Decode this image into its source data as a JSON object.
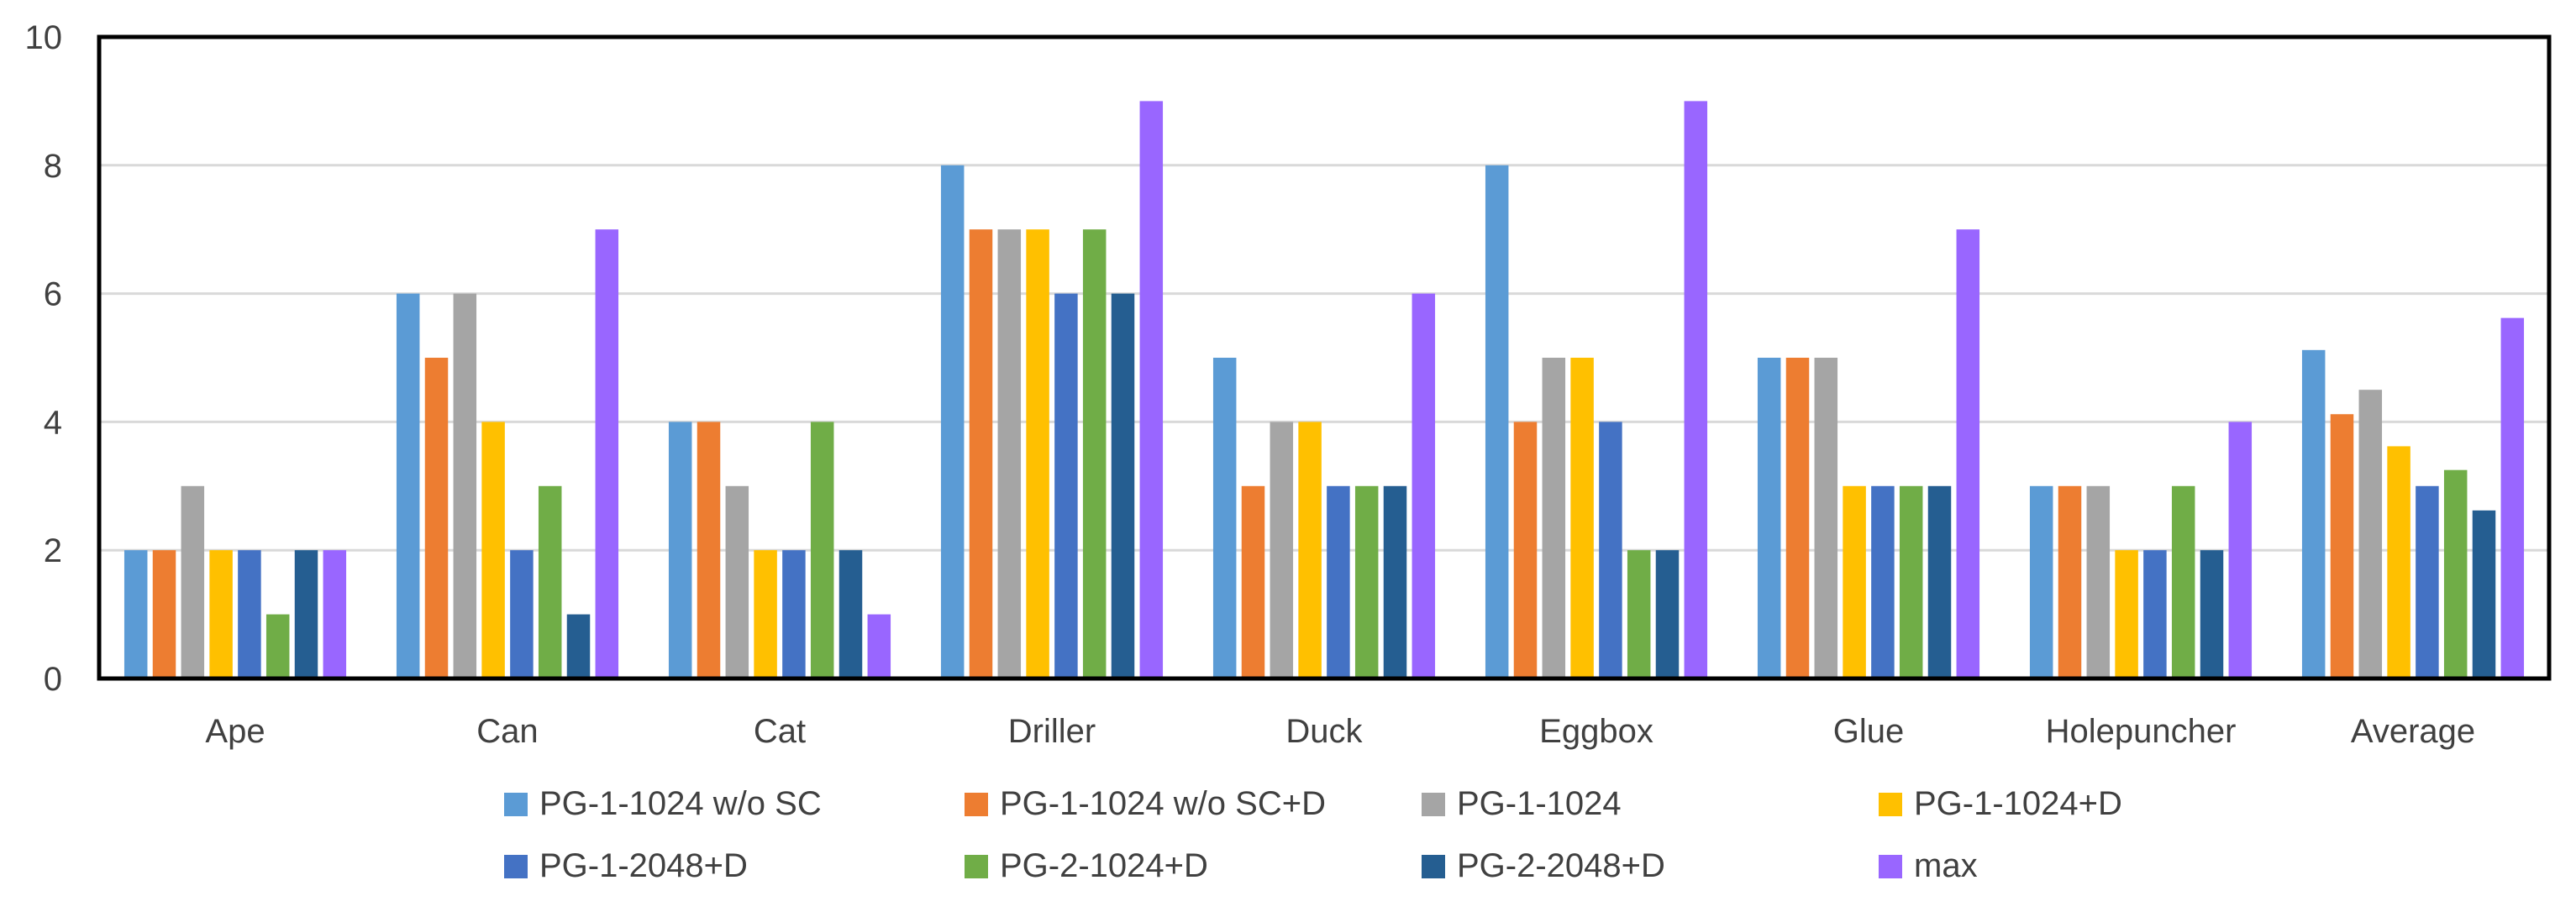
{
  "chart_data": {
    "type": "bar",
    "title": "",
    "xlabel": "",
    "ylabel": "",
    "ylim": [
      0,
      10
    ],
    "yticks": [
      0,
      2,
      4,
      6,
      8,
      10
    ],
    "grid": true,
    "legend_position": "bottom",
    "categories": [
      "Ape",
      "Can",
      "Cat",
      "Driller",
      "Duck",
      "Eggbox",
      "Glue",
      "Holepuncher",
      "Average"
    ],
    "series": [
      {
        "name": "PG-1-1024 w/o SC",
        "color": "#5B9BD5",
        "values": [
          2,
          6,
          4,
          8,
          5,
          8,
          5,
          3,
          5.12
        ]
      },
      {
        "name": "PG-1-1024 w/o SC+D",
        "color": "#ED7D31",
        "values": [
          2,
          5,
          4,
          7,
          3,
          4,
          5,
          3,
          4.12
        ]
      },
      {
        "name": "PG-1-1024",
        "color": "#A5A5A5",
        "values": [
          3,
          6,
          3,
          7,
          4,
          5,
          5,
          3,
          4.5
        ]
      },
      {
        "name": "PG-1-1024+D",
        "color": "#FFC000",
        "values": [
          2,
          4,
          2,
          7,
          4,
          5,
          3,
          2,
          3.62
        ]
      },
      {
        "name": "PG-1-2048+D",
        "color": "#4472C4",
        "values": [
          2,
          2,
          2,
          6,
          3,
          4,
          3,
          2,
          3
        ]
      },
      {
        "name": "PG-2-1024+D",
        "color": "#70AD47",
        "values": [
          1,
          3,
          4,
          7,
          3,
          2,
          3,
          3,
          3.25
        ]
      },
      {
        "name": "PG-2-2048+D",
        "color": "#255E91",
        "values": [
          2,
          1,
          2,
          6,
          3,
          2,
          3,
          2,
          2.62
        ]
      },
      {
        "name": "max",
        "color": "#9966FF",
        "values": [
          2,
          7,
          1,
          9,
          6,
          9,
          7,
          4,
          5.62
        ]
      }
    ]
  }
}
